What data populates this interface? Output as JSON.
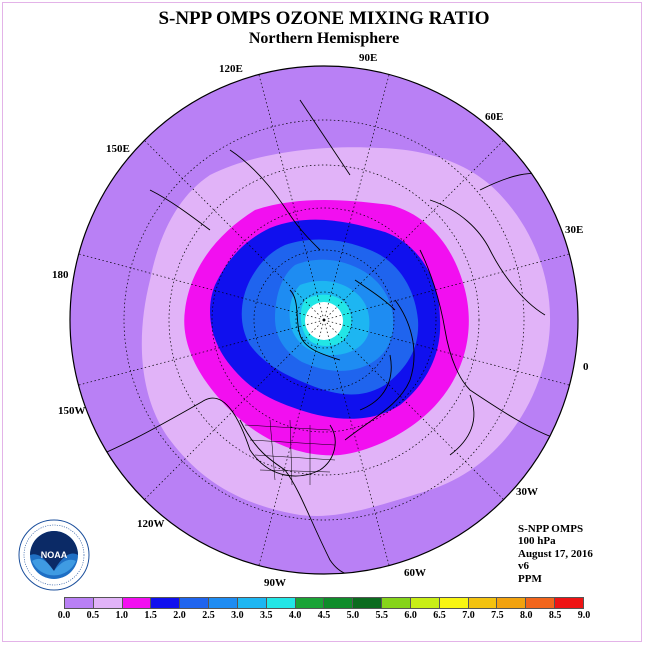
{
  "title": "S-NPP OMPS OZONE MIXING RATIO",
  "subtitle": "Northern Hemisphere",
  "longitude_labels": [
    "90E",
    "60E",
    "30E",
    "0",
    "30W",
    "60W",
    "90W",
    "120W",
    "150W",
    "180",
    "150E",
    "120E"
  ],
  "info": {
    "instrument": "S-NPP OMPS",
    "level": "100 hPa",
    "date": "August 17, 2016",
    "version": "v6",
    "units": "PPM"
  },
  "logo": {
    "text": "NOAA",
    "ring_text": "NATIONAL OCEANIC AND ATMOSPHERIC ADMINISTRATION · U.S. DEPARTMENT OF COMMERCE"
  },
  "colorbar": {
    "ticks": [
      "0.0",
      "0.5",
      "1.0",
      "1.5",
      "2.0",
      "2.5",
      "3.0",
      "3.5",
      "4.0",
      "4.5",
      "5.0",
      "5.5",
      "6.0",
      "6.5",
      "7.0",
      "7.5",
      "8.0",
      "8.5",
      "9.0"
    ],
    "colors": [
      "#b980f5",
      "#e1b3f8",
      "#f20ff0",
      "#1010ee",
      "#1f64ee",
      "#1e8cf2",
      "#1db6f2",
      "#22e6e6",
      "#1aa336",
      "#0f8c2a",
      "#0b6b1e",
      "#86d41a",
      "#c8ee16",
      "#f8f512",
      "#f3c20f",
      "#f2a20e",
      "#f2651b",
      "#ee1414",
      "#8a5a3f"
    ]
  },
  "map_colors": {
    "background": "#b980f5",
    "level_05": "#e1b3f8",
    "level_10": "#f20ff0",
    "level_15": "#1010ee",
    "level_20": "#1f64ee",
    "level_25": "#1e8cf2",
    "level_30": "#1db6f2",
    "level_35": "#22e6e6",
    "pole": "#ffffff"
  }
}
